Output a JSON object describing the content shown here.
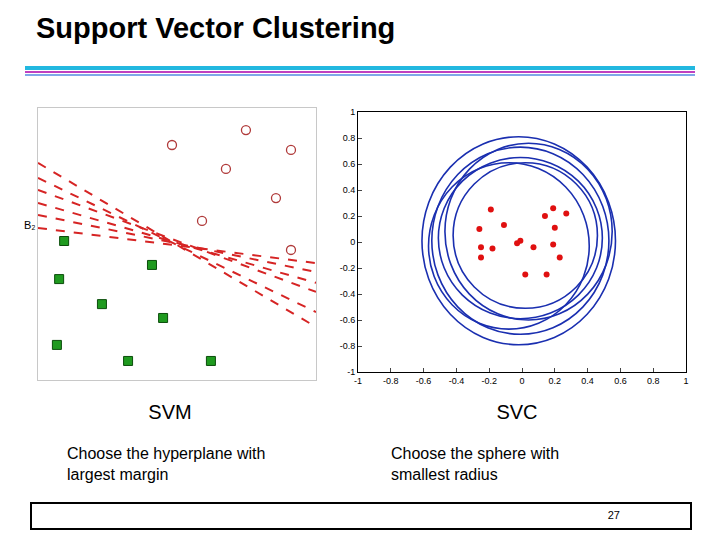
{
  "title": "Support Vector Clustering",
  "page": 27,
  "chart_data": [
    {
      "type": "scatter",
      "title": "SVM",
      "subtitle": "Choose the hyperplane with largest margin",
      "xlim": [
        0,
        10
      ],
      "ylim": [
        0,
        10
      ],
      "tick_labels": false,
      "grid": false,
      "annotations": [
        {
          "text": "B₂",
          "x": 0,
          "y": 5.7
        }
      ],
      "series": [
        {
          "type": "scatter",
          "marker": "circle-open",
          "color": "#b03a3a",
          "x": [
            4.82,
            7.48,
            9.1,
            6.76,
            8.56,
            5.9,
            9.1
          ],
          "values": [
            8.64,
            9.19,
            8.46,
            7.76,
            6.69,
            5.85,
            4.78
          ]
        },
        {
          "type": "scatter",
          "marker": "square",
          "color": "#1f9a1f",
          "x": [
            0.94,
            4.1,
            0.76,
            2.3,
            4.5,
            0.68,
            3.24,
            6.22
          ],
          "values": [
            5.11,
            4.23,
            3.71,
            2.79,
            2.28,
            1.29,
            0.7,
            0.7
          ]
        },
        {
          "type": "line",
          "line_style": "dash",
          "color": "#d62424",
          "x": [
            0,
            10
          ],
          "values": [
            7.98,
            1.95
          ]
        },
        {
          "type": "line",
          "line_style": "dash",
          "color": "#d62424",
          "x": [
            0,
            10
          ],
          "values": [
            7.43,
            2.5
          ]
        },
        {
          "type": "line",
          "line_style": "dash",
          "color": "#d62424",
          "x": [
            0,
            10
          ],
          "values": [
            6.99,
            3.24
          ]
        },
        {
          "type": "line",
          "line_style": "dash",
          "color": "#d62424",
          "x": [
            0,
            10
          ],
          "values": [
            6.51,
            3.57
          ]
        },
        {
          "type": "line",
          "line_style": "dash",
          "color": "#d62424",
          "x": [
            0,
            10
          ],
          "values": [
            6.07,
            3.97
          ]
        },
        {
          "type": "line",
          "line_style": "dash",
          "color": "#d62424",
          "x": [
            0,
            10
          ],
          "values": [
            5.59,
            4.3
          ]
        }
      ]
    },
    {
      "type": "scatter",
      "title": "SVC",
      "subtitle": "Choose the sphere with smallest radius",
      "xlim": [
        -1,
        1
      ],
      "ylim": [
        -1,
        1
      ],
      "xticks": [
        -1,
        -0.8,
        -0.6,
        -0.4,
        -0.2,
        0,
        0.2,
        0.4,
        0.6,
        0.8,
        1
      ],
      "yticks": [
        -1,
        -0.8,
        -0.6,
        -0.4,
        -0.2,
        0,
        0.2,
        0.4,
        0.6,
        0.8,
        1
      ],
      "grid": false,
      "series": [
        {
          "type": "scatter",
          "marker": "circle",
          "color": "#e01010",
          "x": [
            -0.19,
            -0.26,
            -0.25,
            -0.18,
            -0.25,
            -0.11,
            -0.03,
            -0.01,
            0.07,
            0.14,
            0.19,
            0.27,
            0.2,
            0.19,
            0.02,
            0.15,
            0.23
          ],
          "values": [
            0.25,
            0.1,
            -0.04,
            -0.05,
            -0.12,
            0.13,
            -0.01,
            0.01,
            -0.04,
            0.2,
            0.26,
            0.22,
            0.11,
            -0.02,
            -0.25,
            -0.25,
            -0.12
          ]
        }
      ],
      "circles": {
        "color": "#1a2fb0",
        "items": [
          {
            "x": -0.02,
            "y": 0.01,
            "rx": 0.59,
            "ry": 0.8
          },
          {
            "x": -0.01,
            "y": 0.01,
            "rx": 0.54,
            "ry": 0.72
          },
          {
            "x": -0.01,
            "y": 0.03,
            "rx": 0.5,
            "ry": 0.62
          },
          {
            "x": 0.04,
            "y": 0.08,
            "rx": 0.51,
            "ry": 0.68
          },
          {
            "x": 0.02,
            "y": 0.05,
            "rx": 0.44,
            "ry": 0.56
          },
          {
            "x": -0.08,
            "y": -0.03,
            "rx": 0.49,
            "ry": 0.64
          }
        ]
      }
    }
  ]
}
